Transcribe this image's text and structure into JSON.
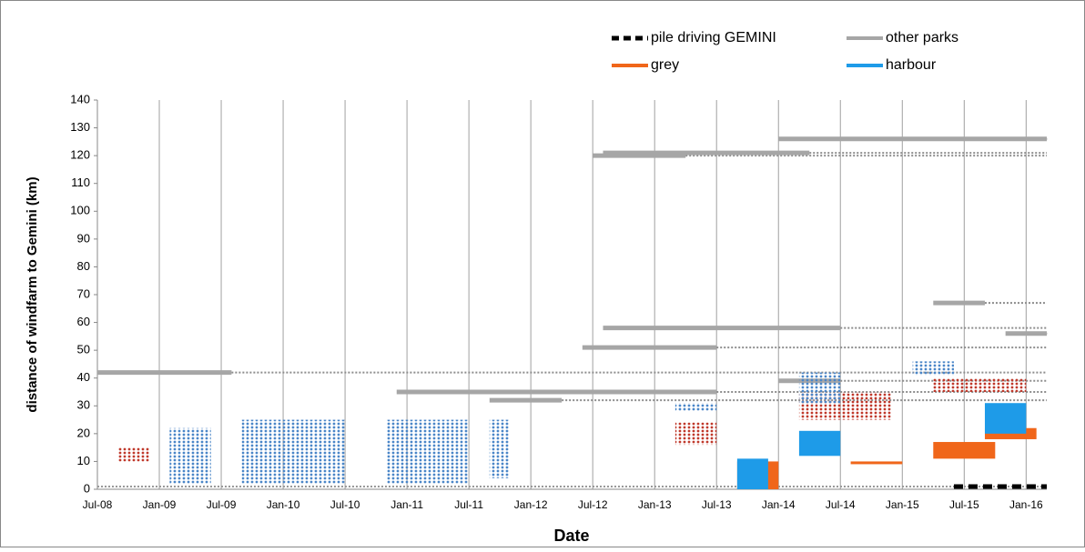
{
  "chart_data": {
    "type": "timeline",
    "xlabel": "Date",
    "ylabel": "distance of windfarm to Gemini (km)",
    "xlim": [
      "2008-07",
      "2016-03"
    ],
    "xticks": [
      {
        "value": "2008-07",
        "label": "Jul-08"
      },
      {
        "value": "2009-01",
        "label": "Jan-09"
      },
      {
        "value": "2009-07",
        "label": "Jul-09"
      },
      {
        "value": "2010-01",
        "label": "Jan-10"
      },
      {
        "value": "2010-07",
        "label": "Jul-10"
      },
      {
        "value": "2011-01",
        "label": "Jan-11"
      },
      {
        "value": "2011-07",
        "label": "Jul-11"
      },
      {
        "value": "2012-01",
        "label": "Jan-12"
      },
      {
        "value": "2012-07",
        "label": "Jul-12"
      },
      {
        "value": "2013-01",
        "label": "Jan-13"
      },
      {
        "value": "2013-07",
        "label": "Jul-13"
      },
      {
        "value": "2014-01",
        "label": "Jan-14"
      },
      {
        "value": "2014-07",
        "label": "Jul-14"
      },
      {
        "value": "2015-01",
        "label": "Jan-15"
      },
      {
        "value": "2015-07",
        "label": "Jul-15"
      },
      {
        "value": "2016-01",
        "label": "Jan-16"
      }
    ],
    "ylim": [
      0,
      140
    ],
    "yticks": [
      0,
      10,
      20,
      30,
      40,
      50,
      60,
      70,
      80,
      90,
      100,
      110,
      120,
      130,
      140
    ],
    "grid": true,
    "series": [
      {
        "name": "pile driving GEMINI",
        "color": "#000000",
        "style": "dashed",
        "segments": [
          {
            "x": [
              "2015-06",
              "2016-03"
            ],
            "y": 1
          }
        ]
      },
      {
        "name": "other parks",
        "color": "#a6a6a6",
        "style": "bar",
        "segments": [
          {
            "x": [
              "2008-07",
              "2009-08"
            ],
            "y": 42
          },
          {
            "x": [
              "2010-12",
              "2013-07"
            ],
            "y": 35
          },
          {
            "x": [
              "2011-09",
              "2012-04"
            ],
            "y": 32
          },
          {
            "x": [
              "2012-06",
              "2013-07"
            ],
            "y": 51
          },
          {
            "x": [
              "2012-08",
              "2014-07"
            ],
            "y": 58
          },
          {
            "x": [
              "2012-07",
              "2013-04"
            ],
            "y": 120
          },
          {
            "x": [
              "2012-08",
              "2014-04"
            ],
            "y": 121
          },
          {
            "x": [
              "2014-01",
              "2016-03"
            ],
            "y": 126
          },
          {
            "x": [
              "2014-01",
              "2014-07"
            ],
            "y": 39
          },
          {
            "x": [
              "2015-04",
              "2015-09"
            ],
            "y": 67
          },
          {
            "x": [
              "2015-11",
              "2016-03"
            ],
            "y": 56
          }
        ]
      },
      {
        "name": "grey",
        "color": "#f0661a",
        "dot_color": "#c0392b",
        "style": "block",
        "blocks": [
          {
            "x": [
              "2008-09",
              "2008-12"
            ],
            "y": [
              10,
              15
            ],
            "fill": "dotted"
          },
          {
            "x": [
              "2013-03",
              "2013-07"
            ],
            "y": [
              16,
              24
            ],
            "fill": "dotted"
          },
          {
            "x": [
              "2013-09",
              "2014-01"
            ],
            "y": [
              0,
              10
            ],
            "fill": "solid"
          },
          {
            "x": [
              "2014-03",
              "2014-12"
            ],
            "y": [
              25,
              35
            ],
            "fill": "dotted"
          },
          {
            "x": [
              "2014-08",
              "2015-01"
            ],
            "y": [
              10,
              10
            ],
            "fill": "solid"
          },
          {
            "x": [
              "2015-04",
              "2016-01"
            ],
            "y": [
              35,
              40
            ],
            "fill": "dotted"
          },
          {
            "x": [
              "2015-04",
              "2015-10"
            ],
            "y": [
              11,
              17
            ],
            "fill": "solid"
          },
          {
            "x": [
              "2015-09",
              "2016-02"
            ],
            "y": [
              18,
              22
            ],
            "fill": "solid"
          }
        ]
      },
      {
        "name": "harbour",
        "color": "#1e9be8",
        "dot_color": "#4a86c8",
        "style": "block",
        "blocks": [
          {
            "x": [
              "2009-02",
              "2009-06"
            ],
            "y": [
              2,
              22
            ],
            "fill": "dotted"
          },
          {
            "x": [
              "2009-09",
              "2010-03"
            ],
            "y": [
              2,
              25
            ],
            "fill": "dotted"
          },
          {
            "x": [
              "2010-03",
              "2010-07"
            ],
            "y": [
              2,
              25
            ],
            "fill": "dotted"
          },
          {
            "x": [
              "2010-11",
              "2011-03"
            ],
            "y": [
              2,
              25
            ],
            "fill": "dotted"
          },
          {
            "x": [
              "2011-03",
              "2011-07"
            ],
            "y": [
              2,
              25
            ],
            "fill": "dotted"
          },
          {
            "x": [
              "2011-09",
              "2011-11"
            ],
            "y": [
              4,
              25
            ],
            "fill": "dotted"
          },
          {
            "x": [
              "2013-03",
              "2013-07"
            ],
            "y": [
              28,
              31
            ],
            "fill": "dotted"
          },
          {
            "x": [
              "2013-09",
              "2013-12"
            ],
            "y": [
              0,
              11
            ],
            "fill": "solid"
          },
          {
            "x": [
              "2014-03",
              "2014-07"
            ],
            "y": [
              31,
              42
            ],
            "fill": "dotted"
          },
          {
            "x": [
              "2014-03",
              "2014-07"
            ],
            "y": [
              12,
              21
            ],
            "fill": "solid"
          },
          {
            "x": [
              "2015-02",
              "2015-06"
            ],
            "y": [
              41,
              46
            ],
            "fill": "dotted"
          },
          {
            "x": [
              "2015-09",
              "2016-01"
            ],
            "y": [
              20,
              31
            ],
            "fill": "solid"
          }
        ]
      }
    ]
  }
}
